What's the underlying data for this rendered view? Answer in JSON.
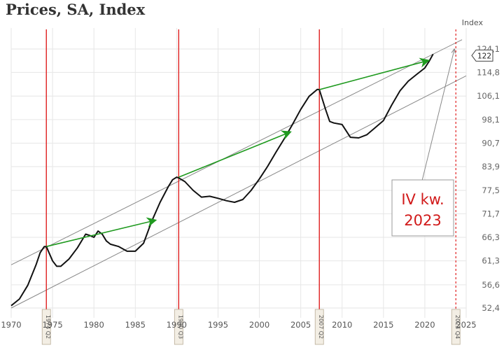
{
  "header": {
    "title": "Prices, SA, Index"
  },
  "chart_data": {
    "type": "line",
    "title": "Prices, SA, Index",
    "ylabel": "Index",
    "xlabel": "",
    "xlim": [
      1970,
      2025
    ],
    "ylim": [
      52.4,
      124.1
    ],
    "y_scale": "log",
    "y_ticks": [
      "52,4",
      "56,6",
      "61,3",
      "66,3",
      "71,7",
      "77,5",
      "83,9",
      "90,7",
      "98,1",
      "106,1",
      "114,8",
      "124,1"
    ],
    "x_ticks": [
      "1970",
      "1975",
      "1980",
      "1985",
      "1990",
      "1995",
      "2000",
      "2005",
      "2010",
      "2015",
      "2020",
      "2025"
    ],
    "last_value_label": "122",
    "series": [
      {
        "x": [
          1970.0,
          1971.0,
          1972.0,
          1973.0,
          1973.5,
          1974.0,
          1974.25,
          1975.0,
          1975.5,
          1976.0,
          1977.0,
          1978.0,
          1979.0,
          1979.5,
          1980.0,
          1980.5,
          1981.0,
          1981.5,
          1982.0,
          1983.0,
          1984.0,
          1985.0,
          1986.0,
          1987.0,
          1988.0,
          1989.0,
          1989.5,
          1990.0,
          1990.25,
          1991.0,
          1992.0,
          1993.0,
          1994.0,
          1995.0,
          1996.0,
          1997.0,
          1998.0,
          1999.0,
          2000.0,
          2001.0,
          2002.0,
          2003.0,
          2004.0,
          2005.0,
          2006.0,
          2007.0,
          2007.25,
          2008.0,
          2008.5,
          2009.0,
          2010.0,
          2011.0,
          2012.0,
          2013.0,
          2014.0,
          2015.0,
          2016.0,
          2017.0,
          2018.0,
          2019.0,
          2020.0,
          2020.5,
          2021.0
        ],
        "values": [
          52.8,
          54.0,
          56.5,
          60.5,
          63.0,
          64.3,
          64.3,
          61.3,
          60.2,
          60.2,
          61.7,
          64.0,
          67.0,
          66.7,
          66.3,
          67.7,
          67.0,
          65.5,
          64.8,
          64.3,
          63.3,
          63.3,
          65.0,
          70.0,
          74.5,
          78.5,
          80.3,
          81.0,
          80.8,
          79.8,
          77.5,
          75.8,
          76.0,
          75.5,
          74.9,
          74.5,
          75.2,
          77.5,
          80.5,
          84.0,
          88.0,
          92.0,
          96.5,
          101.5,
          106.0,
          108.5,
          108.4,
          101.5,
          97.5,
          97.0,
          96.5,
          92.5,
          92.3,
          93.3,
          95.5,
          97.8,
          103.0,
          108.0,
          111.5,
          114.0,
          116.5,
          119.0,
          122.0
        ]
      }
    ],
    "vertical_markers": [
      {
        "x": 1974.25,
        "label": "1974 Q2"
      },
      {
        "x": 1990.25,
        "label": "1990 Q3"
      },
      {
        "x": 2007.25,
        "label": "2007 Q2"
      },
      {
        "x": 2023.75,
        "label": "2023 Q4"
      }
    ],
    "trend_channel": {
      "upper": {
        "x": [
          1970,
          2024.5
        ],
        "values": [
          60.5,
          128.0
        ]
      },
      "lower": {
        "x": [
          1970,
          2025
        ],
        "values": [
          52.4,
          113.5
        ]
      }
    },
    "green_arrows": [
      {
        "x": [
          1974.25,
          1987.5
        ],
        "values": [
          64.3,
          70.2
        ]
      },
      {
        "x": [
          1990.25,
          2003.8
        ],
        "values": [
          81.0,
          94.2
        ]
      },
      {
        "x": [
          2007.25,
          2020.5
        ],
        "values": [
          108.4,
          119.5
        ]
      }
    ],
    "callout": {
      "line1": "IV kw.",
      "line2": "2023"
    },
    "colors": {
      "series": "#111111",
      "marker": "#e02020",
      "arrow": "#1f9a1f",
      "channel": "#888888",
      "grid": "#e6e6e6"
    }
  }
}
